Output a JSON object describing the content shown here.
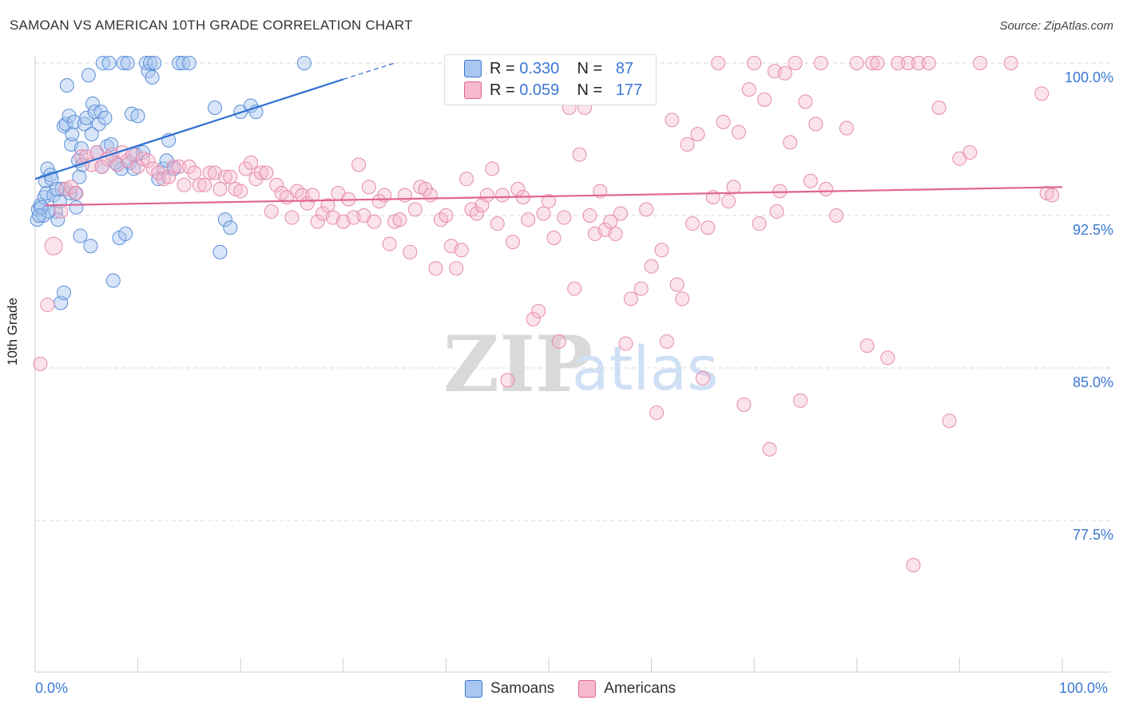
{
  "title": "SAMOAN VS AMERICAN 10TH GRADE CORRELATION CHART",
  "source": "Source: ZipAtlas.com",
  "colors": {
    "blue": "#3a78d4",
    "pink": "#e06593",
    "blue_fill": "#a9c6f0",
    "pink_fill": "#f5b8cc"
  },
  "legend": {
    "rows": [
      {
        "name": "Samoans",
        "r_label": "R =",
        "r": "0.330",
        "n_label": "N =",
        "n": "87"
      },
      {
        "name": "Americans",
        "r_label": "R =",
        "r": "0.059",
        "n_label": "N =",
        "n": "177"
      }
    ]
  },
  "watermark": {
    "part1": "ZIP",
    "part2": "atlas"
  },
  "chart_data": {
    "type": "scatter",
    "title": "SAMOAN VS AMERICAN 10TH GRADE CORRELATION CHART",
    "xlabel": "",
    "ylabel": "10th Grade",
    "xlim": [
      0,
      100
    ],
    "ylim": [
      70,
      101
    ],
    "x_tick_labels": [
      "0.0%",
      "100.0%"
    ],
    "y_ticks": [
      100.0,
      92.5,
      85.0,
      77.5
    ],
    "y_tick_labels": [
      "100.0%",
      "92.5%",
      "85.0%",
      "77.5%"
    ],
    "grid": true,
    "legend_position": "top-center",
    "series": [
      {
        "name": "Samoans",
        "color": "#3a78d4",
        "trend": {
          "x": [
            0,
            30
          ],
          "y": [
            94.3,
            99.2
          ],
          "dashed_to": [
            35,
            100.0
          ]
        },
        "points": [
          [
            0.2,
            92.3
          ],
          [
            0.3,
            92.8
          ],
          [
            0.5,
            93.0
          ],
          [
            0.8,
            92.5
          ],
          [
            0.9,
            93.4
          ],
          [
            1.0,
            94.2
          ],
          [
            1.1,
            93.6
          ],
          [
            1.2,
            94.8
          ],
          [
            1.5,
            94.5
          ],
          [
            1.8,
            93.5
          ],
          [
            2.0,
            92.7
          ],
          [
            2.2,
            92.3
          ],
          [
            2.4,
            93.2
          ],
          [
            2.6,
            93.8
          ],
          [
            2.8,
            96.9
          ],
          [
            3.0,
            97.0
          ],
          [
            3.1,
            98.9
          ],
          [
            3.3,
            97.4
          ],
          [
            3.5,
            96.0
          ],
          [
            3.6,
            96.5
          ],
          [
            3.8,
            97.1
          ],
          [
            4.0,
            92.9
          ],
          [
            4.2,
            95.2
          ],
          [
            4.3,
            94.4
          ],
          [
            4.4,
            91.5
          ],
          [
            4.5,
            95.8
          ],
          [
            4.8,
            97.0
          ],
          [
            5.0,
            97.3
          ],
          [
            5.2,
            99.4
          ],
          [
            5.4,
            91.0
          ],
          [
            5.6,
            98.0
          ],
          [
            5.8,
            97.6
          ],
          [
            6.0,
            95.6
          ],
          [
            6.2,
            97.0
          ],
          [
            6.4,
            97.6
          ],
          [
            6.6,
            100.0
          ],
          [
            6.8,
            97.3
          ],
          [
            7.0,
            95.9
          ],
          [
            7.2,
            100.0
          ],
          [
            7.4,
            96.0
          ],
          [
            7.6,
            89.3
          ],
          [
            8.0,
            95.0
          ],
          [
            8.2,
            91.4
          ],
          [
            8.4,
            94.8
          ],
          [
            8.6,
            100.0
          ],
          [
            8.8,
            91.6
          ],
          [
            9.0,
            100.0
          ],
          [
            9.2,
            95.1
          ],
          [
            9.4,
            97.5
          ],
          [
            9.6,
            94.8
          ],
          [
            9.8,
            95.5
          ],
          [
            10.0,
            97.4
          ],
          [
            10.5,
            95.6
          ],
          [
            10.8,
            100.0
          ],
          [
            11.0,
            99.6
          ],
          [
            11.2,
            100.0
          ],
          [
            11.4,
            99.3
          ],
          [
            11.6,
            100.0
          ],
          [
            12.0,
            94.3
          ],
          [
            12.5,
            94.8
          ],
          [
            12.8,
            95.2
          ],
          [
            13.0,
            96.2
          ],
          [
            13.5,
            94.8
          ],
          [
            14.0,
            100.0
          ],
          [
            14.4,
            100.0
          ],
          [
            15.0,
            100.0
          ],
          [
            17.5,
            97.8
          ],
          [
            18.0,
            90.7
          ],
          [
            18.5,
            92.3
          ],
          [
            19.0,
            91.9
          ],
          [
            20.0,
            97.6
          ],
          [
            21.0,
            97.9
          ],
          [
            21.5,
            97.6
          ],
          [
            26.2,
            100.0
          ],
          [
            1.3,
            92.7
          ],
          [
            2.5,
            88.2
          ],
          [
            2.8,
            88.7
          ],
          [
            3.9,
            93.6
          ],
          [
            0.6,
            92.9
          ],
          [
            0.4,
            92.5
          ],
          [
            1.6,
            94.3
          ],
          [
            2.1,
            93.8
          ],
          [
            3.4,
            93.6
          ],
          [
            4.6,
            95.0
          ],
          [
            5.5,
            96.5
          ],
          [
            6.5,
            94.9
          ],
          [
            7.8,
            95.1
          ]
        ]
      },
      {
        "name": "Americans",
        "color": "#e06593",
        "trend": {
          "x": [
            1,
            100
          ],
          "y": [
            93.0,
            93.9
          ]
        },
        "points": [
          [
            0.5,
            85.2
          ],
          [
            1.2,
            88.1
          ],
          [
            1.8,
            91.0
          ],
          [
            2.5,
            92.7
          ],
          [
            3.0,
            93.8
          ],
          [
            3.5,
            93.9
          ],
          [
            4.0,
            93.6
          ],
          [
            4.5,
            95.4
          ],
          [
            5.0,
            95.4
          ],
          [
            5.5,
            95.0
          ],
          [
            6.0,
            95.6
          ],
          [
            6.5,
            94.9
          ],
          [
            7.0,
            95.3
          ],
          [
            7.5,
            95.5
          ],
          [
            8.0,
            95.0
          ],
          [
            8.5,
            95.6
          ],
          [
            9.0,
            95.2
          ],
          [
            9.5,
            95.5
          ],
          [
            10.0,
            94.9
          ],
          [
            10.5,
            95.3
          ],
          [
            11.0,
            95.2
          ],
          [
            11.5,
            94.8
          ],
          [
            12.0,
            94.6
          ],
          [
            12.5,
            94.3
          ],
          [
            13.0,
            94.4
          ],
          [
            13.5,
            94.9
          ],
          [
            14.0,
            94.9
          ],
          [
            14.5,
            94.0
          ],
          [
            15.0,
            94.9
          ],
          [
            15.5,
            94.6
          ],
          [
            16.0,
            94.0
          ],
          [
            16.5,
            94.0
          ],
          [
            17.0,
            94.6
          ],
          [
            17.5,
            94.6
          ],
          [
            18.0,
            93.8
          ],
          [
            18.5,
            94.4
          ],
          [
            19.0,
            94.4
          ],
          [
            19.5,
            93.8
          ],
          [
            20.0,
            93.7
          ],
          [
            20.5,
            94.8
          ],
          [
            21.0,
            95.1
          ],
          [
            21.5,
            94.3
          ],
          [
            22.0,
            94.6
          ],
          [
            22.5,
            94.6
          ],
          [
            23.0,
            92.7
          ],
          [
            23.5,
            94.0
          ],
          [
            24.0,
            93.6
          ],
          [
            24.5,
            93.4
          ],
          [
            25.0,
            92.4
          ],
          [
            25.5,
            93.7
          ],
          [
            26.0,
            93.5
          ],
          [
            26.5,
            93.1
          ],
          [
            27.0,
            93.5
          ],
          [
            27.5,
            92.2
          ],
          [
            28.0,
            92.6
          ],
          [
            28.5,
            93.0
          ],
          [
            29.0,
            92.4
          ],
          [
            29.5,
            93.6
          ],
          [
            30.0,
            92.2
          ],
          [
            30.5,
            93.3
          ],
          [
            31.0,
            92.4
          ],
          [
            31.5,
            95.0
          ],
          [
            32.0,
            92.5
          ],
          [
            32.5,
            93.9
          ],
          [
            33.0,
            92.2
          ],
          [
            33.5,
            93.2
          ],
          [
            34.0,
            93.5
          ],
          [
            34.5,
            91.1
          ],
          [
            35.0,
            92.2
          ],
          [
            35.5,
            92.3
          ],
          [
            36.0,
            93.5
          ],
          [
            36.5,
            90.7
          ],
          [
            37.0,
            92.8
          ],
          [
            37.5,
            93.9
          ],
          [
            38.0,
            93.8
          ],
          [
            38.5,
            93.5
          ],
          [
            39.0,
            89.9
          ],
          [
            39.5,
            92.3
          ],
          [
            40.0,
            92.5
          ],
          [
            40.5,
            91.0
          ],
          [
            41.0,
            89.9
          ],
          [
            41.5,
            90.8
          ],
          [
            42.0,
            94.3
          ],
          [
            42.5,
            92.8
          ],
          [
            43.0,
            92.6
          ],
          [
            43.5,
            93.0
          ],
          [
            44.0,
            93.5
          ],
          [
            44.5,
            94.8
          ],
          [
            45.0,
            92.1
          ],
          [
            45.5,
            93.5
          ],
          [
            46.0,
            84.4
          ],
          [
            46.5,
            91.2
          ],
          [
            47.0,
            93.8
          ],
          [
            47.5,
            93.4
          ],
          [
            48.0,
            92.3
          ],
          [
            48.5,
            87.4
          ],
          [
            49.0,
            87.8
          ],
          [
            49.5,
            92.6
          ],
          [
            50.0,
            93.2
          ],
          [
            50.5,
            91.4
          ],
          [
            51.0,
            86.3
          ],
          [
            51.5,
            92.4
          ],
          [
            52.0,
            97.8
          ],
          [
            52.5,
            88.9
          ],
          [
            53.0,
            95.5
          ],
          [
            53.5,
            97.8
          ],
          [
            54.0,
            92.5
          ],
          [
            54.5,
            91.6
          ],
          [
            55.0,
            93.7
          ],
          [
            55.5,
            91.8
          ],
          [
            56.0,
            92.2
          ],
          [
            56.5,
            91.6
          ],
          [
            57.0,
            92.6
          ],
          [
            57.5,
            86.2
          ],
          [
            58.0,
            88.4
          ],
          [
            58.5,
            100.0
          ],
          [
            59.0,
            88.9
          ],
          [
            59.5,
            92.8
          ],
          [
            60.0,
            90.0
          ],
          [
            60.5,
            82.8
          ],
          [
            61.0,
            90.8
          ],
          [
            61.5,
            86.3
          ],
          [
            62.0,
            97.2
          ],
          [
            62.5,
            89.1
          ],
          [
            63.0,
            88.4
          ],
          [
            63.5,
            96.0
          ],
          [
            64.0,
            92.1
          ],
          [
            64.5,
            96.5
          ],
          [
            65.0,
            84.5
          ],
          [
            65.5,
            91.9
          ],
          [
            66.0,
            93.4
          ],
          [
            66.5,
            100.0
          ],
          [
            67.0,
            97.1
          ],
          [
            67.5,
            93.2
          ],
          [
            68.0,
            93.9
          ],
          [
            68.5,
            96.6
          ],
          [
            69.0,
            83.2
          ],
          [
            69.5,
            98.7
          ],
          [
            70.0,
            100.0
          ],
          [
            70.5,
            92.1
          ],
          [
            71.0,
            98.2
          ],
          [
            71.5,
            81.0
          ],
          [
            72.0,
            99.6
          ],
          [
            72.5,
            93.7
          ],
          [
            73.0,
            99.5
          ],
          [
            73.5,
            96.1
          ],
          [
            74.0,
            100.0
          ],
          [
            74.5,
            83.4
          ],
          [
            75.0,
            98.1
          ],
          [
            75.5,
            94.2
          ],
          [
            76.0,
            97.0
          ],
          [
            76.5,
            100.0
          ],
          [
            77.0,
            93.8
          ],
          [
            78.0,
            92.5
          ],
          [
            79.0,
            96.8
          ],
          [
            80.0,
            100.0
          ],
          [
            81.0,
            86.1
          ],
          [
            81.5,
            100.0
          ],
          [
            82.0,
            100.0
          ],
          [
            83.0,
            85.5
          ],
          [
            84.0,
            100.0
          ],
          [
            85.0,
            100.0
          ],
          [
            85.5,
            75.3
          ],
          [
            86.0,
            100.0
          ],
          [
            87.0,
            100.0
          ],
          [
            88.0,
            97.8
          ],
          [
            89.0,
            82.4
          ],
          [
            90.0,
            95.3
          ],
          [
            91.0,
            95.6
          ],
          [
            92.0,
            100.0
          ],
          [
            95.0,
            100.0
          ],
          [
            98.0,
            98.5
          ],
          [
            98.5,
            93.6
          ],
          [
            99.0,
            93.5
          ],
          [
            57.6,
            100.0
          ],
          [
            72.2,
            92.7
          ]
        ]
      }
    ]
  }
}
